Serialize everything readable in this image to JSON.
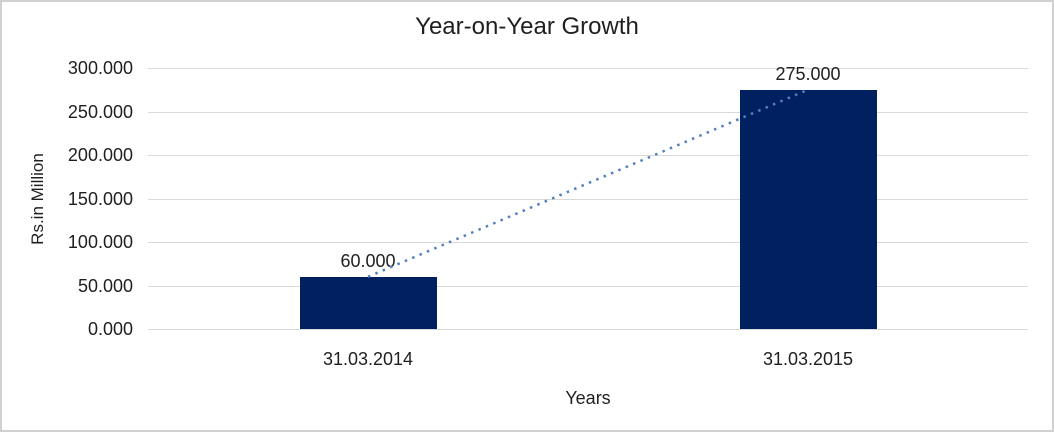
{
  "chart_data": {
    "type": "bar",
    "title": "Year-on-Year Growth",
    "categories": [
      "31.03.2014",
      "31.03.2015"
    ],
    "values": [
      60,
      275
    ],
    "value_labels": [
      "60.000",
      "275.000"
    ],
    "xlabel": "Years",
    "ylabel": "Rs.in Million",
    "ylim": [
      0,
      300
    ],
    "ytick_values": [
      0,
      50,
      100,
      150,
      200,
      250,
      300
    ],
    "ytick_labels": [
      "0.000",
      "50.000",
      "100.000",
      "150.000",
      "200.000",
      "250.000",
      "300.000"
    ],
    "grid": true,
    "legend": false,
    "trendline": {
      "style": "dotted",
      "from_category": "31.03.2014",
      "to_category": "31.03.2015"
    }
  },
  "colors": {
    "bar_fill": "#002060",
    "trendline": "#4f81bd",
    "gridline": "#d9d9d9",
    "frame_border": "#d1d1d1",
    "text": "#1f1f1f"
  }
}
